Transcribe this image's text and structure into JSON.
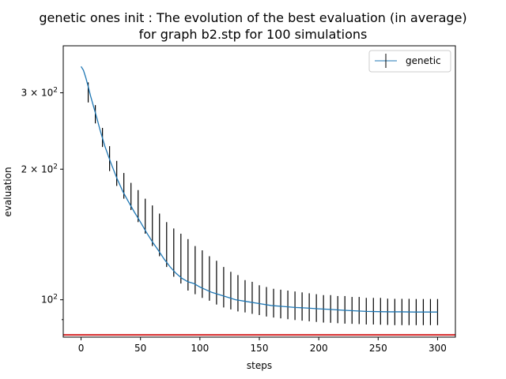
{
  "chart_data": {
    "type": "line",
    "title_line1": "genetic ones init : The evolution of the best evaluation (in average)",
    "title_line2": "for graph b2.stp for 100 simulations",
    "xlabel": "steps",
    "ylabel": "evaluation",
    "xlim": [
      -15,
      315
    ],
    "ylim": [
      82,
      385
    ],
    "yscale": "log",
    "x_ticks": [
      0,
      50,
      100,
      150,
      200,
      250,
      300
    ],
    "x_tick_labels": [
      "0",
      "50",
      "100",
      "150",
      "200",
      "250",
      "300"
    ],
    "y_major_ticks": [
      100,
      200,
      300
    ],
    "y_tick_labels": {
      "base": "10",
      "items": [
        {
          "coef": "",
          "exp": "2"
        },
        {
          "coef": "2 × ",
          "exp": "2"
        },
        {
          "coef": "3 × ",
          "exp": "2"
        }
      ]
    },
    "y_minor_ticks": [
      90
    ],
    "legend": {
      "position": "upper right",
      "entries": [
        "genetic"
      ]
    },
    "series": [
      {
        "name": "genetic",
        "color": "#1f77b4",
        "x": [
          0,
          2,
          4,
          6,
          8,
          10,
          12,
          14,
          16,
          18,
          20,
          25,
          30,
          35,
          40,
          45,
          50,
          55,
          60,
          65,
          70,
          75,
          80,
          85,
          90,
          95,
          100,
          110,
          120,
          130,
          140,
          150,
          160,
          170,
          180,
          190,
          200,
          210,
          220,
          230,
          240,
          250,
          260,
          270,
          280,
          290,
          300
        ],
        "y": [
          345,
          338,
          325,
          310,
          295,
          282,
          270,
          258,
          246,
          236,
          226,
          207,
          191,
          178,
          168,
          159,
          151,
          143,
          136,
          130,
          124,
          119,
          115,
          112,
          110,
          109,
          107,
          104,
          102,
          100,
          99,
          98,
          97,
          96.5,
          96,
          95.7,
          95.3,
          95,
          94.6,
          94.3,
          94,
          93.9,
          93.8,
          93.8,
          93.7,
          93.7,
          93.7
        ]
      }
    ],
    "error_bars": {
      "color": "#000000",
      "x": [
        6,
        12,
        18,
        24,
        30,
        36,
        42,
        48,
        54,
        60,
        66,
        72,
        78,
        84,
        90,
        96,
        102,
        108,
        114,
        120,
        126,
        132,
        138,
        144,
        150,
        156,
        162,
        168,
        174,
        180,
        186,
        192,
        198,
        204,
        210,
        216,
        222,
        228,
        234,
        240,
        246,
        252,
        258,
        264,
        270,
        276,
        282,
        288,
        294,
        300
      ],
      "low": [
        285,
        255,
        225,
        198,
        183,
        171,
        161,
        151,
        142,
        133,
        126,
        119,
        113,
        109,
        105,
        103,
        101,
        99.5,
        97.5,
        96,
        95,
        94,
        93.5,
        92.8,
        92.2,
        91.5,
        91,
        90.6,
        90.2,
        89.8,
        89.5,
        89.2,
        88.9,
        88.6,
        88.5,
        88.3,
        88.1,
        88,
        87.9,
        87.7,
        87.7,
        87.6,
        87.5,
        87.4,
        87.4,
        87.4,
        87.4,
        87.4,
        87.4,
        87.4
      ],
      "high": [
        317,
        281,
        249,
        226,
        209,
        196,
        186,
        179,
        171,
        165,
        158,
        151,
        146,
        142,
        138,
        133,
        130,
        126,
        123,
        119,
        116,
        114,
        111,
        110,
        108,
        107,
        106,
        105.5,
        105,
        104.5,
        104,
        103.5,
        103,
        102.5,
        102.5,
        102,
        102,
        101.5,
        101.5,
        101,
        101,
        101,
        100.6,
        100.5,
        100.5,
        100.5,
        100.4,
        100.4,
        100.4,
        100.4
      ]
    },
    "reference_line": {
      "y": 83,
      "color": "#d62728"
    }
  }
}
